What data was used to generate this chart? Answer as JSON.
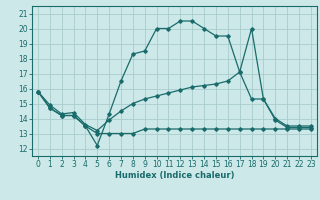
{
  "xlabel": "Humidex (Indice chaleur)",
  "ylabel": "",
  "background_color": "#cce8e8",
  "grid_color": "#aacccc",
  "line_color": "#1a6b6b",
  "xlim": [
    -0.5,
    23.5
  ],
  "ylim": [
    11.5,
    21.5
  ],
  "yticks": [
    12,
    13,
    14,
    15,
    16,
    17,
    18,
    19,
    20,
    21
  ],
  "xticks": [
    0,
    1,
    2,
    3,
    4,
    5,
    6,
    7,
    8,
    9,
    10,
    11,
    12,
    13,
    14,
    15,
    16,
    17,
    18,
    19,
    20,
    21,
    22,
    23
  ],
  "series1_x": [
    0,
    1,
    2,
    3,
    4,
    5,
    6,
    7,
    8,
    9,
    10,
    11,
    12,
    13,
    14,
    15,
    16,
    17,
    18,
    19,
    20,
    21,
    22,
    23
  ],
  "series1_y": [
    15.8,
    14.7,
    14.2,
    14.2,
    13.5,
    12.2,
    14.3,
    16.5,
    18.3,
    18.5,
    20.0,
    20.0,
    20.5,
    20.5,
    20.0,
    19.5,
    19.5,
    17.1,
    20.0,
    15.3,
    13.9,
    13.4,
    13.4,
    13.4
  ],
  "series2_x": [
    0,
    1,
    2,
    3,
    4,
    5,
    6,
    7,
    8,
    9,
    10,
    11,
    12,
    13,
    14,
    15,
    16,
    17,
    18,
    19,
    20,
    21,
    22,
    23
  ],
  "series2_y": [
    15.8,
    14.7,
    14.2,
    14.2,
    13.5,
    13.0,
    13.0,
    13.0,
    13.0,
    13.3,
    13.3,
    13.3,
    13.3,
    13.3,
    13.3,
    13.3,
    13.3,
    13.3,
    13.3,
    13.3,
    13.3,
    13.3,
    13.3,
    13.3
  ],
  "series3_x": [
    0,
    1,
    2,
    3,
    4,
    5,
    6,
    7,
    8,
    9,
    10,
    11,
    12,
    13,
    14,
    15,
    16,
    17,
    18,
    19,
    20,
    21,
    22,
    23
  ],
  "series3_y": [
    15.8,
    14.9,
    14.3,
    14.4,
    13.6,
    13.2,
    13.9,
    14.5,
    15.0,
    15.3,
    15.5,
    15.7,
    15.9,
    16.1,
    16.2,
    16.3,
    16.5,
    17.1,
    15.3,
    15.3,
    14.0,
    13.5,
    13.5,
    13.5
  ],
  "tick_fontsize": 5.5,
  "xlabel_fontsize": 6.0
}
